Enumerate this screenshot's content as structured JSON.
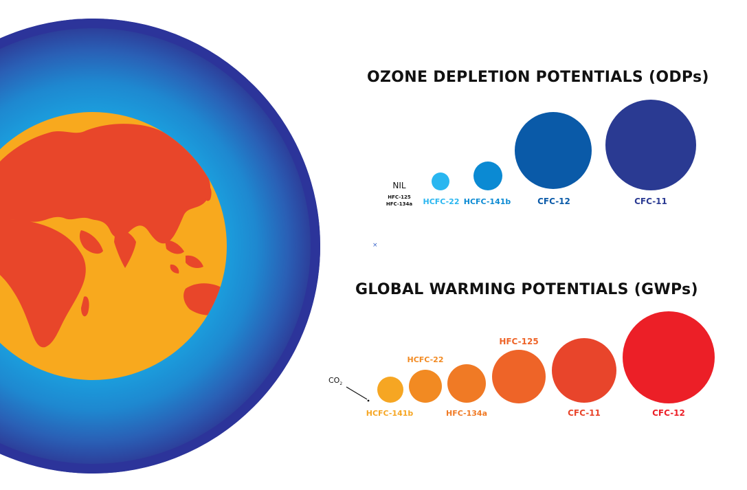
{
  "odp": {
    "title": "OZONE DEPLETION POTENTIALS (ODPs)",
    "nil_label": "NIL",
    "nil_gases": [
      "HFC-125",
      "HFC-134a"
    ],
    "items": [
      {
        "label": "HCFC-22",
        "color": "#29b6f0"
      },
      {
        "label": "HCFC-141b",
        "color": "#0b8ad3"
      },
      {
        "label": "CFC-12",
        "color": "#0a5aa8"
      },
      {
        "label": "CFC-11",
        "color": "#2a3a92"
      }
    ]
  },
  "gwp": {
    "title": "GLOBAL WARMING POTENTIALS (GWPs)",
    "baseline_label": "CO",
    "baseline_subscript": "2",
    "items": [
      {
        "label": "HCFC-141b",
        "color": "#f6a623"
      },
      {
        "label": "HCFC-22",
        "color": "#f28a22"
      },
      {
        "label": "HFC-134a",
        "color": "#f07a25"
      },
      {
        "label": "HFC-125",
        "color": "#ee6428"
      },
      {
        "label": "CFC-11",
        "color": "#e8452b"
      },
      {
        "label": "CFC-12",
        "color": "#ec1f27"
      }
    ]
  },
  "marker": "×",
  "earth": {
    "atmosphere_outer_color": "#2d3290",
    "atmosphere_mid_color": "#1e88d0",
    "atmosphere_inner_color": "#1aa3e0",
    "ocean_color": "#f8a91e",
    "land_color": "#e8462a"
  }
}
